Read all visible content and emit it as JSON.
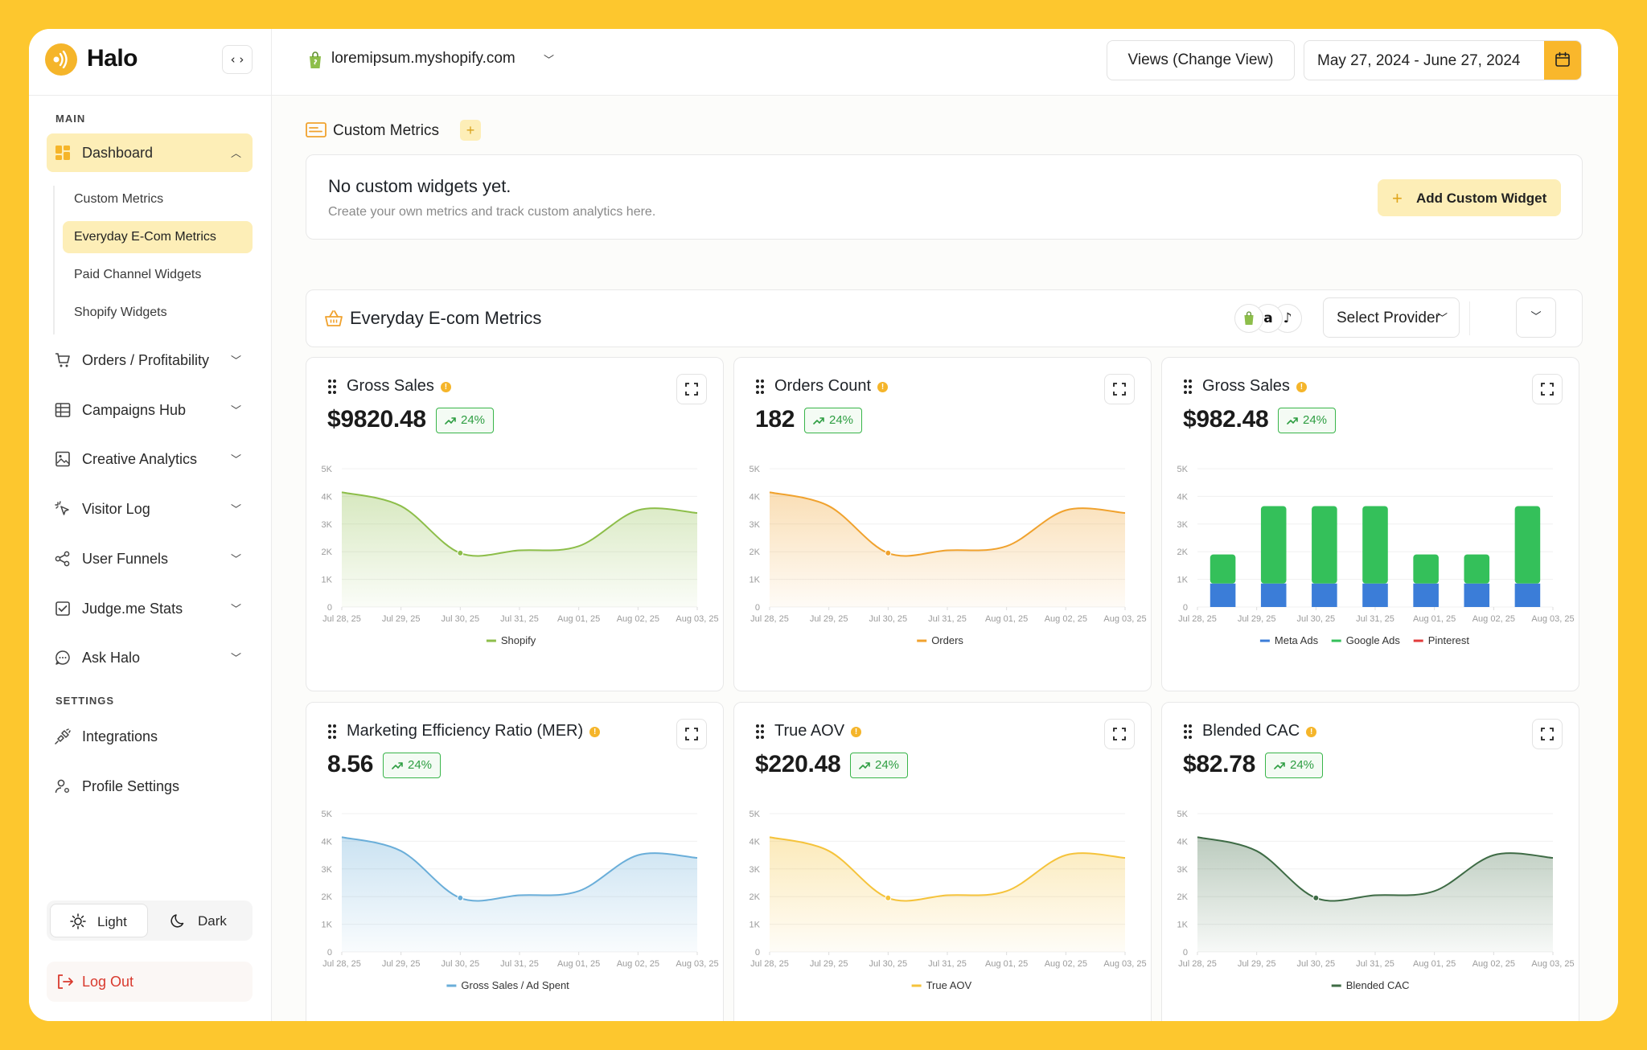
{
  "app": {
    "name": "Halo"
  },
  "sidebar": {
    "section_main": "MAIN",
    "section_settings": "SETTINGS",
    "dashboard": {
      "label": "Dashboard"
    },
    "sub_items": [
      {
        "label": "Custom Metrics"
      },
      {
        "label": "Everyday E-Com Metrics"
      },
      {
        "label": "Paid Channel Widgets"
      },
      {
        "label": "Shopify Widgets"
      }
    ],
    "items": [
      {
        "label": "Orders / Profitability",
        "icon": "cart-icon"
      },
      {
        "label": "Campaigns Hub",
        "icon": "table-icon"
      },
      {
        "label": "Creative Analytics",
        "icon": "image-icon"
      },
      {
        "label": "Visitor Log",
        "icon": "pointer-icon"
      },
      {
        "label": "User Funnels",
        "icon": "share-icon"
      },
      {
        "label": "Judge.me Stats",
        "icon": "check-icon"
      },
      {
        "label": "Ask Halo",
        "icon": "chat-icon"
      }
    ],
    "settings_items": [
      {
        "label": "Integrations",
        "icon": "plug-icon"
      },
      {
        "label": "Profile Settings",
        "icon": "user-gear-icon"
      }
    ],
    "theme": {
      "light": "Light",
      "dark": "Dark"
    },
    "logout": "Log Out"
  },
  "header": {
    "store": "loremipsum.myshopify.com",
    "views_button": "Views (Change View)",
    "date_range": "May 27, 2024 - June 27, 2024"
  },
  "custom_metrics": {
    "title": "Custom Metrics",
    "empty_title": "No custom widgets yet.",
    "empty_subtitle": "Create your own metrics and track custom analytics here.",
    "add_button": "Add Custom Widget"
  },
  "ecom_section": {
    "title": "Everyday E-com Metrics",
    "select_provider": "Select Provider"
  },
  "colors": {
    "accent": "#F9B72C",
    "accent_soft": "#FDEEB7",
    "positive": "#2e9e42",
    "logout": "#d93a2e"
  },
  "chart_data": [
    {
      "type": "area",
      "title": "Gross Sales",
      "value": "$9820.48",
      "change": "24%",
      "x": [
        "Jul 28, 25",
        "Jul 29, 25",
        "Jul 30, 25",
        "Jul 31, 25",
        "Aug 01, 25",
        "Aug 02, 25",
        "Aug 03, 25"
      ],
      "yticks": [
        "0",
        "1K",
        "2K",
        "3K",
        "4K",
        "5K"
      ],
      "ylim": [
        0,
        5000
      ],
      "series": [
        {
          "name": "Shopify",
          "color": "#8DBE4A",
          "values": [
            4150,
            3650,
            1950,
            2050,
            2200,
            3500,
            3400
          ]
        }
      ]
    },
    {
      "type": "area",
      "title": "Orders Count",
      "value": "182",
      "change": "24%",
      "x": [
        "Jul 28, 25",
        "Jul 29, 25",
        "Jul 30, 25",
        "Jul 31, 25",
        "Aug 01, 25",
        "Aug 02, 25",
        "Aug 03, 25"
      ],
      "yticks": [
        "0",
        "1K",
        "2K",
        "3K",
        "4K",
        "5K"
      ],
      "ylim": [
        0,
        5000
      ],
      "series": [
        {
          "name": "Orders",
          "color": "#F0A22E",
          "values": [
            4150,
            3650,
            1950,
            2050,
            2200,
            3500,
            3400
          ]
        }
      ]
    },
    {
      "type": "bar",
      "title": "Gross Sales",
      "value": "$982.48",
      "change": "24%",
      "x": [
        "Jul 28, 25",
        "Jul 29, 25",
        "Jul 30, 25",
        "Jul 31, 25",
        "Aug 01, 25",
        "Aug 02, 25",
        "Aug 03, 25"
      ],
      "bar_slots": 7,
      "yticks": [
        "0",
        "1K",
        "2K",
        "3K",
        "4K",
        "5K"
      ],
      "ylim": [
        0,
        5000
      ],
      "series": [
        {
          "name": "Meta Ads",
          "color": "#3B7DD8",
          "values": [
            850,
            850,
            850,
            850,
            850,
            850,
            850
          ]
        },
        {
          "name": "Google Ads",
          "color": "#34C05A",
          "values": [
            1050,
            2800,
            2800,
            2800,
            1050,
            1050,
            2800
          ]
        },
        {
          "name": "Pinterest",
          "color": "#E23B3B",
          "values": [
            0,
            0,
            0,
            0,
            0,
            0,
            0
          ]
        }
      ]
    },
    {
      "type": "area",
      "title": "Marketing Efficiency Ratio (MER)",
      "value": "8.56",
      "change": "24%",
      "x": [
        "Jul 28, 25",
        "Jul 29, 25",
        "Jul 30, 25",
        "Jul 31, 25",
        "Aug 01, 25",
        "Aug 02, 25",
        "Aug 03, 25"
      ],
      "yticks": [
        "0",
        "1K",
        "2K",
        "3K",
        "4K",
        "5K"
      ],
      "ylim": [
        0,
        5000
      ],
      "series": [
        {
          "name": "Gross Sales / Ad Spent",
          "color": "#6AAED9",
          "values": [
            4150,
            3650,
            1950,
            2050,
            2200,
            3500,
            3400
          ]
        }
      ]
    },
    {
      "type": "area",
      "title": "True AOV",
      "value": "$220.48",
      "change": "24%",
      "x": [
        "Jul 28, 25",
        "Jul 29, 25",
        "Jul 30, 25",
        "Jul 31, 25",
        "Aug 01, 25",
        "Aug 02, 25",
        "Aug 03, 25"
      ],
      "yticks": [
        "0",
        "1K",
        "2K",
        "3K",
        "4K",
        "5K"
      ],
      "ylim": [
        0,
        5000
      ],
      "series": [
        {
          "name": "True AOV",
          "color": "#F5C33B",
          "values": [
            4150,
            3650,
            1950,
            2050,
            2200,
            3500,
            3400
          ]
        }
      ]
    },
    {
      "type": "area",
      "title": "Blended CAC",
      "value": "$82.78",
      "change": "24%",
      "x": [
        "Jul 28, 25",
        "Jul 29, 25",
        "Jul 30, 25",
        "Jul 31, 25",
        "Aug 01, 25",
        "Aug 02, 25",
        "Aug 03, 25"
      ],
      "yticks": [
        "0",
        "1K",
        "2K",
        "3K",
        "4K",
        "5K"
      ],
      "ylim": [
        0,
        5000
      ],
      "series": [
        {
          "name": "Blended CAC",
          "color": "#3E6B45",
          "values": [
            4150,
            3650,
            1950,
            2050,
            2200,
            3500,
            3400
          ]
        }
      ]
    }
  ]
}
